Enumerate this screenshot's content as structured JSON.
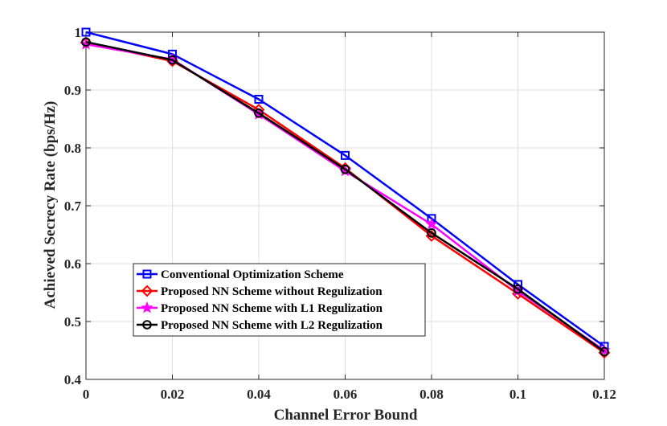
{
  "chart_data": {
    "type": "line",
    "title": "",
    "xlabel": "Channel Error Bound",
    "ylabel": "Achieved Secrecy Rate (bps/Hz)",
    "xlim": [
      0,
      0.12
    ],
    "ylim": [
      0.4,
      1
    ],
    "grid": true,
    "legend_position": "bottom-left",
    "x": [
      0,
      0.02,
      0.04,
      0.06,
      0.08,
      0.1,
      0.12
    ],
    "x_tick_labels": [
      "0",
      "0.02",
      "0.04",
      "0.06",
      "0.08",
      "0.1",
      "0.12"
    ],
    "y_ticks": [
      0.4,
      0.5,
      0.6,
      0.7,
      0.8,
      0.9,
      1
    ],
    "y_tick_labels": [
      "0.4",
      "0.5",
      "0.6",
      "0.7",
      "0.8",
      "0.9",
      "1"
    ],
    "series": [
      {
        "name": "Conventional Optimization Scheme",
        "color": "#0000ff",
        "marker": "square",
        "values": [
          1.0,
          0.962,
          0.884,
          0.787,
          0.678,
          0.564,
          0.457
        ]
      },
      {
        "name": "Proposed NN Scheme without Regulization",
        "color": "#ff0000",
        "marker": "diamond",
        "values": [
          0.982,
          0.95,
          0.866,
          0.765,
          0.648,
          0.548,
          0.446
        ]
      },
      {
        "name": "Proposed NN Scheme with L1 Regulization",
        "color": "#ff00ff",
        "marker": "star",
        "values": [
          0.979,
          0.953,
          0.858,
          0.76,
          0.668,
          0.553,
          0.45
        ]
      },
      {
        "name": "Proposed NN Scheme with L2 Regulization",
        "color": "#000000",
        "marker": "circle",
        "values": [
          0.983,
          0.952,
          0.86,
          0.763,
          0.653,
          0.556,
          0.448
        ]
      }
    ]
  }
}
